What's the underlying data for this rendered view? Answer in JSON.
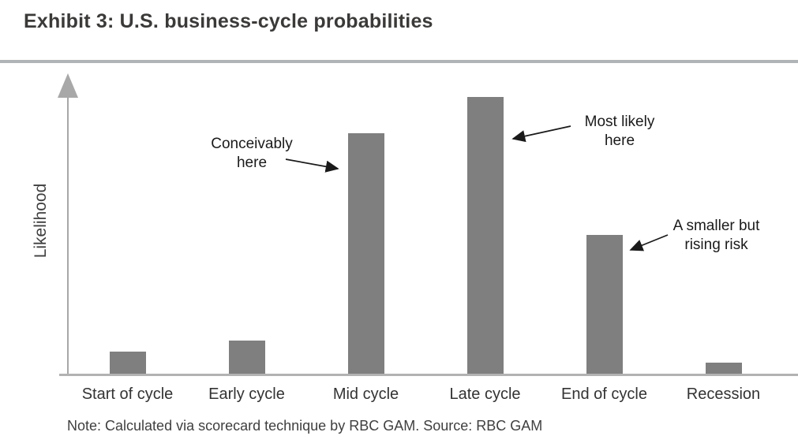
{
  "header": {
    "title": "Exhibit 3: U.S. business-cycle probabilities"
  },
  "chart_data": {
    "type": "bar",
    "title": "Exhibit 3: U.S. business-cycle probabilities",
    "categories": [
      "Start of cycle",
      "Early cycle",
      "Mid cycle",
      "Late cycle",
      "End of cycle",
      "Recession"
    ],
    "values": [
      8,
      12,
      87,
      100,
      50,
      4
    ],
    "xlabel": "",
    "ylabel": "Likelihood",
    "ylim": [
      0,
      100
    ],
    "grid": false,
    "legend": false,
    "bar_color": "#7f7f7f",
    "axis_color": "#a8a8a8",
    "annotations": [
      {
        "text": "Conceivably\nhere",
        "target": "Mid cycle"
      },
      {
        "text": "Most likely\nhere",
        "target": "Late cycle"
      },
      {
        "text": "A smaller but\nrising risk",
        "target": "End of cycle"
      }
    ]
  },
  "footer": {
    "note": "Note: Calculated via scorecard technique by RBC GAM. Source: RBC GAM"
  }
}
